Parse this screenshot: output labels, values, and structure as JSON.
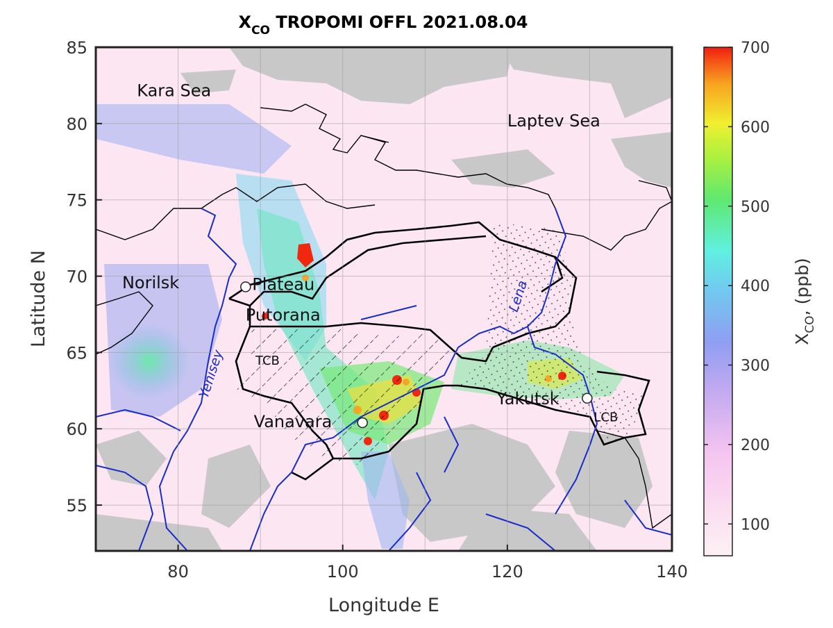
{
  "title": {
    "main": "X",
    "sub": "CO",
    "rest": " TROPOMI OFFL 2021.08.04"
  },
  "axes": {
    "xlabel": "Longitude E",
    "ylabel": "Latitude N",
    "xlim": [
      70,
      140
    ],
    "ylim": [
      52,
      85
    ],
    "xticks": [
      80,
      100,
      120,
      140
    ],
    "yticks": [
      55,
      60,
      65,
      70,
      75,
      80,
      85
    ],
    "grid": true
  },
  "colorbar": {
    "label_main": "X",
    "label_sub": "CO",
    "label_rest": ", (ppb)",
    "range": [
      60,
      700
    ],
    "ticks": [
      100,
      200,
      300,
      400,
      500,
      600,
      700
    ],
    "colors": [
      "#fdf0f4",
      "#f8c9f2",
      "#c0a8f0",
      "#8fa0f2",
      "#6fc8f0",
      "#62f0e0",
      "#5fe870",
      "#a8f040",
      "#f0f030",
      "#f8a020",
      "#f02010"
    ]
  },
  "place_labels": [
    {
      "text": "Kara Sea",
      "lon": 75,
      "lat": 81.8
    },
    {
      "text": "Laptev Sea",
      "lon": 120,
      "lat": 79.8
    },
    {
      "text": "Norilsk",
      "lon": 73.2,
      "lat": 69.2
    },
    {
      "text": "Plateau",
      "lon": 89.0,
      "lat": 69.1
    },
    {
      "text": "Putorana",
      "lon": 88.2,
      "lat": 67.1
    },
    {
      "text": "TCB",
      "lon": 89.4,
      "lat": 64.2
    },
    {
      "text": "Yakutsk",
      "lon": 118.7,
      "lat": 61.6
    },
    {
      "text": "LCB",
      "lon": 130.5,
      "lat": 60.5
    },
    {
      "text": "Vanavara",
      "lon": 89.2,
      "lat": 60.1
    }
  ],
  "river_labels": [
    {
      "text": "Yenisey",
      "lon": 84.5,
      "lat": 63.5,
      "angle": -72
    },
    {
      "text": "Lena",
      "lon": 121.8,
      "lat": 68.6,
      "angle": -72
    }
  ],
  "markers": [
    {
      "name": "Norilsk",
      "lon": 88.2,
      "lat": 69.3
    },
    {
      "name": "Vanavara",
      "lon": 102.4,
      "lat": 60.4
    },
    {
      "name": "Yakutsk",
      "lon": 129.7,
      "lat": 62.0
    }
  ],
  "colors": {
    "river": "#1a2cc8",
    "coast": "#000000",
    "nodata": "#c8c8c8",
    "background": "#fbe6f2"
  }
}
